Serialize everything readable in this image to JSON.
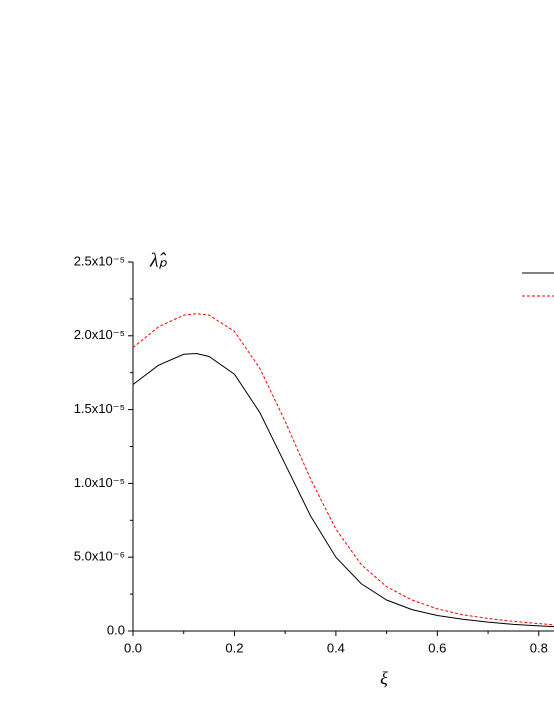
{
  "chart_data": {
    "type": "line",
    "x_label": "ξ",
    "y_label": "λ̂ₚ",
    "x": [
      0,
      0.05,
      0.1,
      0.125,
      0.15,
      0.2,
      0.25,
      0.3,
      0.35,
      0.4,
      0.45,
      0.5,
      0.55,
      0.6,
      0.65,
      0.7,
      0.75,
      0.8,
      0.83
    ],
    "series": [
      {
        "color": "#000000",
        "dash": "solid",
        "values": [
          1.67e-05,
          1.8e-05,
          1.875e-05,
          1.88e-05,
          1.86e-05,
          1.74e-05,
          1.48e-05,
          1.13e-05,
          7.8e-06,
          5e-06,
          3.2e-06,
          2.1e-06,
          1.45e-06,
          1.05e-06,
          8e-07,
          6e-07,
          4.5e-07,
          3.5e-07,
          3e-07
        ]
      },
      {
        "color": "#ff0000",
        "dash": "dashed",
        "values": [
          1.92e-05,
          2.06e-05,
          2.14e-05,
          2.15e-05,
          2.14e-05,
          2.03e-05,
          1.78e-05,
          1.42e-05,
          1.03e-05,
          6.9e-06,
          4.5e-06,
          3e-06,
          2.1e-06,
          1.5e-06,
          1.1e-06,
          8.5e-07,
          6.5e-07,
          5e-07,
          4.2e-07
        ]
      }
    ],
    "xlim": [
      0,
      0.83
    ],
    "xticks": [
      {
        "value": 0,
        "label": "0.0"
      },
      0.2,
      0.4,
      0.6,
      0.8
    ],
    "ylim": [
      0,
      2.5e-05
    ],
    "yticks": [
      {
        "value": 0,
        "label": "0.0"
      },
      {
        "value": 5e-06,
        "label": "5.0x10⁻⁶"
      },
      {
        "value": 1e-05,
        "label": "1.0x10⁻⁵"
      },
      {
        "value": 1.5e-05,
        "label": "1.5x10⁻⁵"
      },
      {
        "value": 2e-05,
        "label": "2.0x10⁻⁵"
      },
      {
        "value": 2.5e-05,
        "label": "2.5x10⁻⁵"
      }
    ],
    "grid": false,
    "legend": "upper right"
  }
}
